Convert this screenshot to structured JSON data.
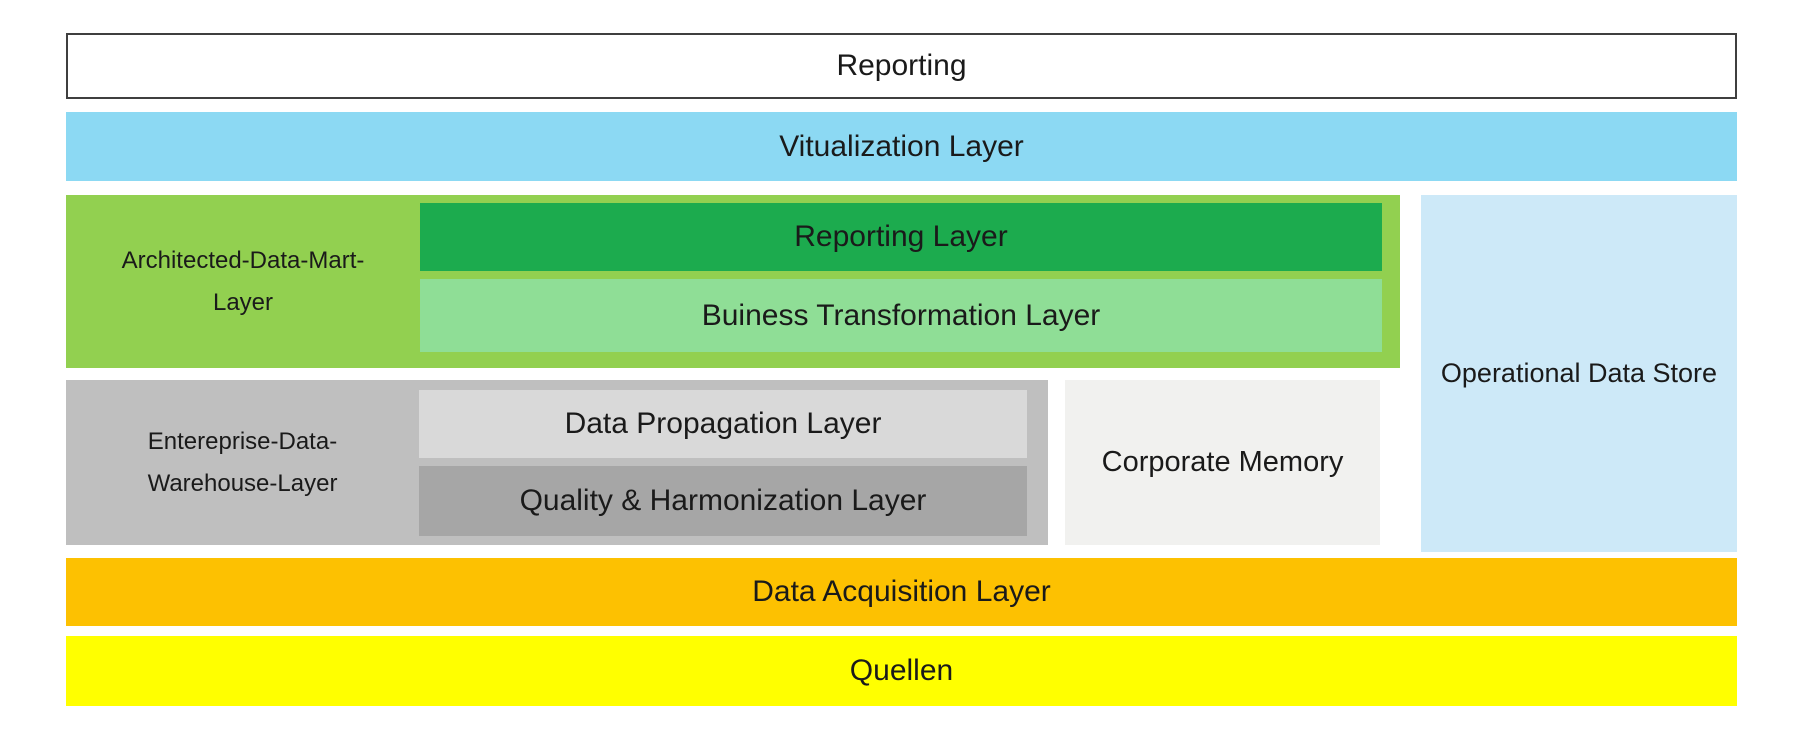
{
  "palette": {
    "text": "#1A1A1A",
    "reporting_box_bg": "#FFFFFF",
    "reporting_box_border": "#3F3F3F",
    "visualization_bg": "#8CD9F3",
    "adm_container_bg": "#92D050",
    "reporting_layer_bg": "#1CAB4E",
    "business_transformation_bg": "#8FDE96",
    "edw_container_bg": "#BFBFBF",
    "data_propagation_bg": "#D9D9D9",
    "quality_harmonization_bg": "#A6A6A6",
    "corporate_memory_bg": "#F1F1EF",
    "operational_data_store_bg": "#CDE9F8",
    "acquisition_bg": "#FDC101",
    "quellen_bg": "#FFFF00"
  },
  "diagram": {
    "reporting_box": {
      "label": "Reporting"
    },
    "visualization": {
      "label": "Vitualization Layer"
    },
    "architected_data_mart": {
      "label_lines": [
        "Architected-Data-Mart-",
        "Layer"
      ],
      "children": {
        "reporting_layer": {
          "label": "Reporting Layer"
        },
        "business_transformation": {
          "label": "Buiness Transformation Layer"
        }
      }
    },
    "enterprise_data_warehouse": {
      "label_lines": [
        "Entereprise-Data-",
        "Warehouse-Layer"
      ],
      "children": {
        "data_propagation": {
          "label": "Data Propagation Layer"
        },
        "quality_harmonization": {
          "label": "Quality & Harmonization Layer"
        }
      }
    },
    "corporate_memory": {
      "label": "Corporate Memory"
    },
    "operational_data_store": {
      "label": "Operational Data Store"
    },
    "data_acquisition": {
      "label": "Data Acquisition Layer"
    },
    "quellen": {
      "label": "Quellen"
    }
  }
}
